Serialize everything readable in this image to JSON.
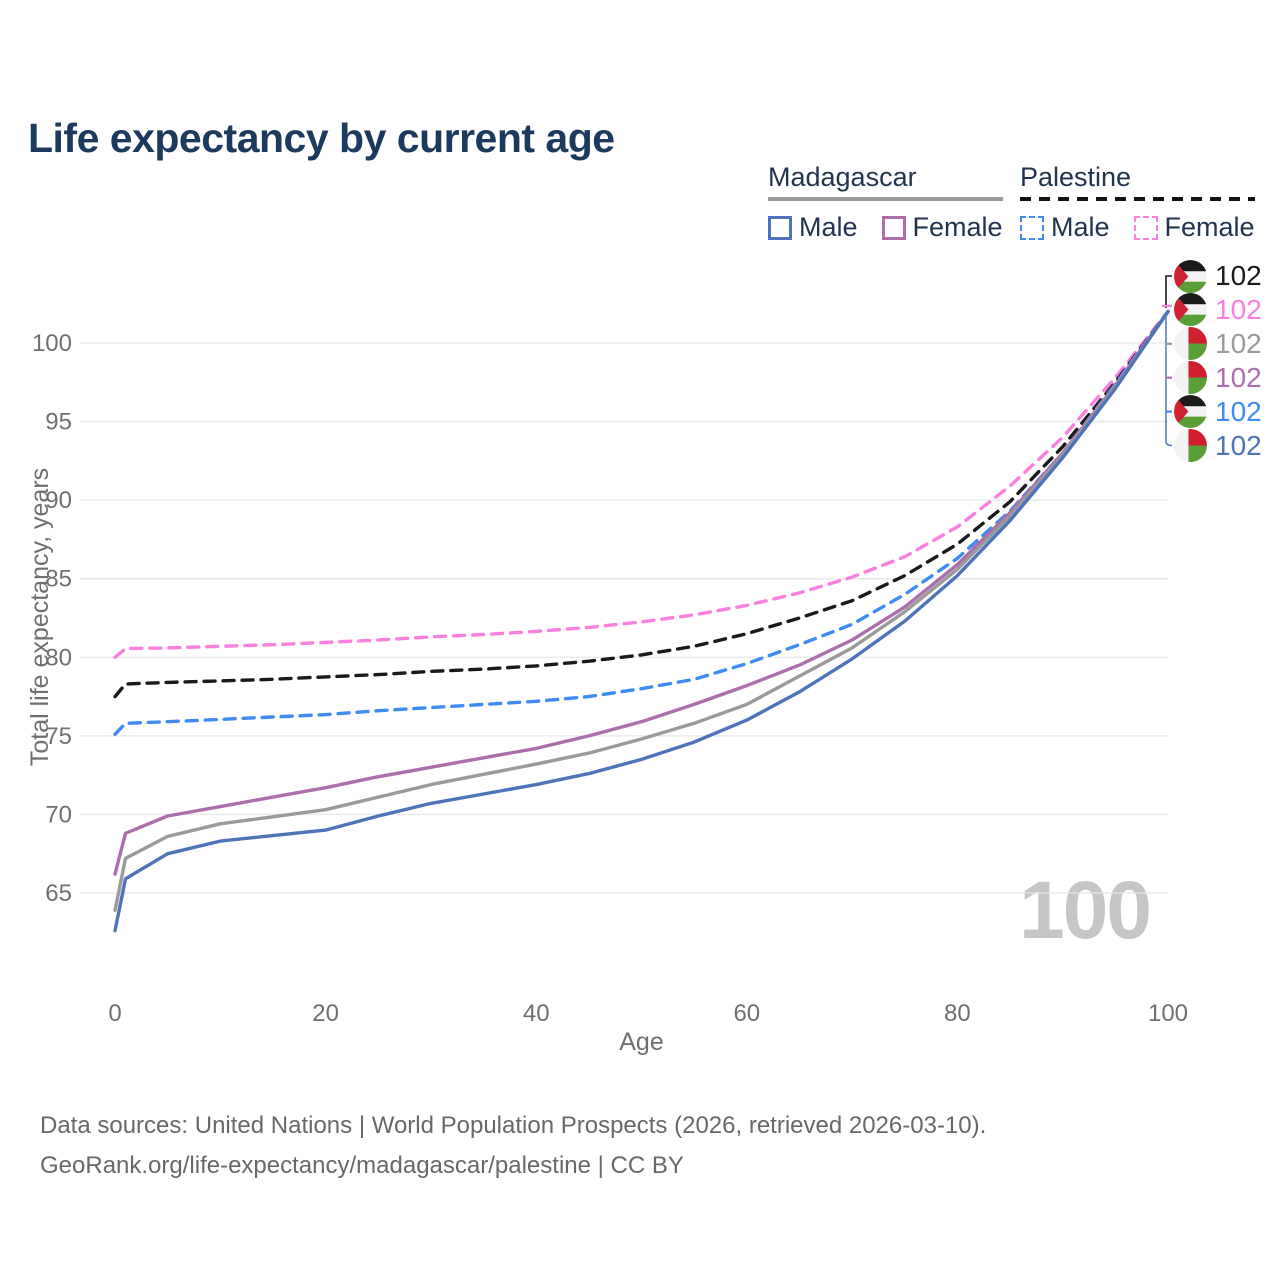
{
  "title": "Life expectancy by current age",
  "legend": {
    "groups": [
      {
        "name": "Madagascar",
        "line_style": "solid",
        "items": [
          {
            "label": "Male",
            "color": "#4d74b9",
            "dashed": false
          },
          {
            "label": "Female",
            "color": "#ad6fab",
            "dashed": false
          }
        ]
      },
      {
        "name": "Palestine",
        "line_style": "dashed",
        "items": [
          {
            "label": "Male",
            "color": "#3e8bf2",
            "dashed": true
          },
          {
            "label": "Female",
            "color": "#f980df",
            "dashed": true
          }
        ]
      }
    ]
  },
  "chart_data": {
    "type": "line",
    "title": "Life expectancy by current age",
    "xlabel": "Age",
    "ylabel": "Total life expectancy, years",
    "xlim": [
      0,
      100
    ],
    "ylim": [
      62,
      103.5
    ],
    "xticks": [
      0,
      20,
      40,
      60,
      80,
      100
    ],
    "yticks": [
      65,
      70,
      75,
      80,
      85,
      90,
      95,
      100
    ],
    "grid": "horizontal",
    "legend_position": "top-right",
    "x": [
      0,
      1,
      5,
      10,
      15,
      20,
      25,
      30,
      35,
      40,
      45,
      50,
      55,
      60,
      65,
      70,
      75,
      80,
      85,
      90,
      95,
      100
    ],
    "series": [
      {
        "name": "Palestine Female",
        "color": "#f980df",
        "dash": "dashed",
        "values": [
          80.0,
          80.55,
          80.6,
          80.7,
          80.8,
          80.95,
          81.1,
          81.3,
          81.45,
          81.65,
          81.9,
          82.25,
          82.7,
          83.3,
          84.1,
          85.1,
          86.4,
          88.3,
          90.9,
          94.0,
          97.8,
          102
        ]
      },
      {
        "name": "Palestine Overall",
        "color": "#1a1a1a",
        "dash": "dashed",
        "values": [
          77.5,
          78.3,
          78.4,
          78.5,
          78.6,
          78.75,
          78.9,
          79.1,
          79.25,
          79.45,
          79.75,
          80.15,
          80.7,
          81.5,
          82.5,
          83.6,
          85.2,
          87.2,
          89.9,
          93.4,
          97.5,
          102
        ]
      },
      {
        "name": "Palestine Male",
        "color": "#3e8bf2",
        "dash": "dashed",
        "values": [
          75.1,
          75.8,
          75.9,
          76.05,
          76.2,
          76.35,
          76.6,
          76.8,
          77.0,
          77.2,
          77.5,
          78.0,
          78.6,
          79.6,
          80.8,
          82.1,
          84.0,
          86.3,
          89.3,
          93.0,
          97.4,
          102
        ]
      },
      {
        "name": "Madagascar Female",
        "color": "#ad6fab",
        "dash": "solid",
        "values": [
          66.2,
          68.8,
          69.9,
          70.5,
          71.1,
          71.7,
          72.4,
          73.0,
          73.6,
          74.2,
          75.0,
          75.9,
          77.0,
          78.2,
          79.5,
          81.1,
          83.2,
          85.9,
          89.2,
          93.0,
          97.3,
          102
        ]
      },
      {
        "name": "Madagascar Overall",
        "color": "#9a9a9a",
        "dash": "solid",
        "values": [
          63.9,
          67.2,
          68.6,
          69.4,
          69.85,
          70.3,
          71.1,
          71.9,
          72.55,
          73.2,
          73.9,
          74.8,
          75.8,
          77.0,
          78.8,
          80.6,
          82.9,
          85.6,
          89.0,
          92.9,
          97.2,
          102
        ]
      },
      {
        "name": "Madagascar Male",
        "color": "#4d74b9",
        "dash": "solid",
        "values": [
          62.6,
          65.9,
          67.5,
          68.3,
          68.65,
          69.0,
          69.9,
          70.7,
          71.3,
          71.9,
          72.6,
          73.5,
          74.6,
          76.0,
          77.8,
          79.9,
          82.3,
          85.2,
          88.7,
          92.7,
          97.1,
          102
        ]
      }
    ]
  },
  "end_labels": [
    {
      "value": "102",
      "color": "#1a1a1a",
      "flag": "palestine",
      "series": "Palestine Overall"
    },
    {
      "value": "102",
      "color": "#f980df",
      "flag": "palestine",
      "series": "Palestine Female"
    },
    {
      "value": "102",
      "color": "#9a9a9a",
      "flag": "madagascar",
      "series": "Madagascar Overall"
    },
    {
      "value": "102",
      "color": "#ad6fab",
      "flag": "madagascar",
      "series": "Madagascar Female"
    },
    {
      "value": "102",
      "color": "#3e8bf2",
      "flag": "palestine",
      "series": "Palestine Male"
    },
    {
      "value": "102",
      "color": "#4d74b9",
      "flag": "madagascar",
      "series": "Madagascar Male"
    }
  ],
  "age_indicator": "100",
  "source": {
    "line1": "Data sources: United Nations | World Population Prospects (2026, retrieved 2026-03-10).",
    "line2": "GeoRank.org/life-expectancy/madagascar/palestine | CC BY"
  },
  "colors": {
    "title": "#1c3a5e",
    "axis_text": "#6f6f6f",
    "gridline": "#e7e7e7",
    "watermark": "#c6c6c6",
    "legend_text": "#22344f"
  }
}
